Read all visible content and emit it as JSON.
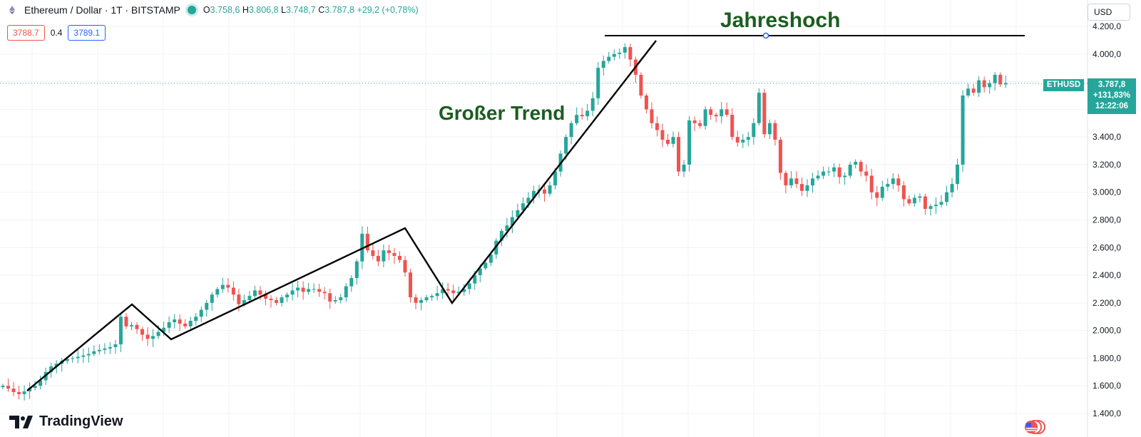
{
  "header": {
    "symbol_title": "Ethereum / Dollar · 1T · BITSTAMP",
    "ohlc": {
      "o_label": "O",
      "o": "3.758,6",
      "h_label": "H",
      "h": "3.806,8",
      "l_label": "L",
      "l": "3.748,7",
      "c_label": "C",
      "c": "3.787,8",
      "change": "+29,2 (+0,78%)"
    },
    "bid": "3788.7",
    "spread": "0.4",
    "ask": "3789.1",
    "currency": "USD"
  },
  "price_tag": {
    "symbol": "ETHUSD",
    "price": "3.787,8",
    "change": "+131,83%",
    "time": "12:22:06"
  },
  "branding": {
    "logo_text": "TradingView"
  },
  "colors": {
    "up": "#26a69a",
    "down": "#ef5350",
    "annotation": "#1b5e20",
    "trendline": "#000000",
    "grid": "#f0f3fa"
  },
  "chart_data": {
    "type": "candlestick",
    "title": "Ethereum / Dollar · 1T · BITSTAMP",
    "y_axis": {
      "ticks": [
        1400,
        1600,
        1800,
        2000,
        2200,
        2400,
        2600,
        2800,
        3000,
        3200,
        3400,
        4000,
        4200
      ],
      "tick_labels": [
        "1.400,0",
        "1.600,0",
        "1.800,0",
        "2.000,0",
        "2.200,0",
        "2.400,0",
        "2.600,0",
        "2.800,0",
        "3.000,0",
        "3.200,0",
        "3.400,0",
        "4.000,0",
        "4.200,0"
      ],
      "range": [
        1300,
        4300
      ]
    },
    "last_price": 3787.8,
    "close_series": [
      1600,
      1580,
      1555,
      1540,
      1560,
      1585,
      1600,
      1640,
      1700,
      1740,
      1760,
      1780,
      1795,
      1800,
      1810,
      1820,
      1830,
      1850,
      1860,
      1870,
      1880,
      1900,
      2100,
      2030,
      2040,
      2010,
      1970,
      1940,
      1960,
      1990,
      2020,
      2060,
      2080,
      2050,
      2030,
      2070,
      2100,
      2150,
      2200,
      2260,
      2300,
      2330,
      2310,
      2260,
      2190,
      2220,
      2250,
      2290,
      2260,
      2230,
      2220,
      2200,
      2240,
      2260,
      2290,
      2310,
      2280,
      2300,
      2300,
      2280,
      2270,
      2210,
      2220,
      2240,
      2320,
      2380,
      2500,
      2700,
      2580,
      2540,
      2500,
      2580,
      2560,
      2540,
      2510,
      2420,
      2240,
      2200,
      2220,
      2240,
      2250,
      2270,
      2300,
      2290,
      2270,
      2280,
      2300,
      2340,
      2400,
      2450,
      2490,
      2550,
      2650,
      2720,
      2760,
      2820,
      2870,
      2920,
      2960,
      3010,
      3020,
      2990,
      3050,
      3150,
      3280,
      3400,
      3500,
      3560,
      3550,
      3590,
      3680,
      3900,
      3950,
      3980,
      4000,
      4010,
      4050,
      3960,
      3850,
      3700,
      3600,
      3500,
      3450,
      3380,
      3350,
      3400,
      3150,
      3200,
      3520,
      3500,
      3480,
      3600,
      3560,
      3550,
      3600,
      3560,
      3400,
      3360,
      3380,
      3400,
      3500,
      3720,
      3420,
      3500,
      3380,
      3140,
      3050,
      3100,
      3060,
      3010,
      3050,
      3100,
      3120,
      3150,
      3150,
      3180,
      3110,
      3120,
      3200,
      3220,
      3150,
      3120,
      3000,
      2960,
      3040,
      3060,
      3100,
      3050,
      2950,
      2920,
      2960,
      2970,
      2880,
      2900,
      2910,
      2930,
      3000,
      3060,
      3200,
      3700,
      3750,
      3720,
      3810,
      3760,
      3790,
      3850,
      3780,
      3790
    ]
  },
  "annotations": {
    "big_trend": "Großer Trend",
    "year_high": "Jahreshoch"
  }
}
